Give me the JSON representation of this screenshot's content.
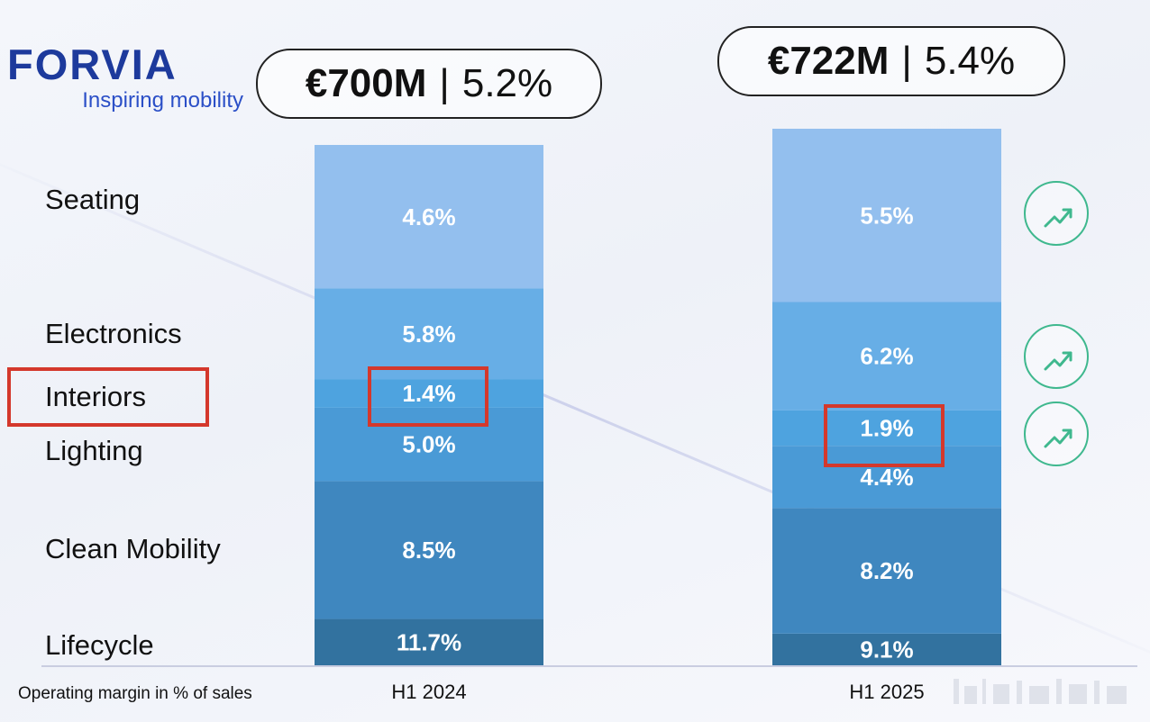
{
  "logo": {
    "name": "FORVIA",
    "tagline": "Inspiring mobility"
  },
  "totals": [
    {
      "period": "H1 2024",
      "amount": "€700M",
      "separator": "|",
      "margin": "5.2%"
    },
    {
      "period": "H1 2025",
      "amount": "€722M",
      "separator": "|",
      "margin": "5.4%"
    }
  ],
  "segment_labels": [
    "Seating",
    "Electronics",
    "Interiors",
    "Lighting",
    "Clean Mobility",
    "Lifecycle"
  ],
  "highlighted_segment": "Interiors",
  "footnote": "Operating margin in % of sales",
  "trend_icons": [
    {
      "segment": "Seating",
      "icon": "trend-up-icon"
    },
    {
      "segment": "Electronics",
      "icon": "trend-up-icon"
    },
    {
      "segment": "Interiors",
      "icon": "trend-up-icon"
    }
  ],
  "colors": {
    "seating": "#93bfee",
    "electronics": "#67aee6",
    "interiors": "#4ea3df",
    "lighting": "#4a9ad6",
    "clean_mobility": "#3f87bf",
    "lifecycle": "#32729f",
    "highlight": "#d4382c",
    "trend": "#3fb88e",
    "logo": "#1d3a9c"
  },
  "chart_data": {
    "type": "bar",
    "stacked": true,
    "title": "",
    "xlabel": "",
    "ylabel": "Operating margin in % of sales",
    "categories": [
      "H1 2024",
      "H1 2025"
    ],
    "series": [
      {
        "name": "Lifecycle",
        "values": [
          11.7,
          9.1
        ],
        "labels": [
          "11.7%",
          "9.1%"
        ]
      },
      {
        "name": "Clean Mobility",
        "values": [
          8.5,
          8.2
        ],
        "labels": [
          "8.5%",
          "8.2%"
        ]
      },
      {
        "name": "Lighting",
        "values": [
          5.0,
          4.4
        ],
        "labels": [
          "5.0%",
          "4.4%"
        ]
      },
      {
        "name": "Interiors",
        "values": [
          1.4,
          1.9
        ],
        "labels": [
          "1.4%",
          "1.9%"
        ]
      },
      {
        "name": "Electronics",
        "values": [
          5.8,
          6.2
        ],
        "labels": [
          "5.8%",
          "6.2%"
        ]
      },
      {
        "name": "Seating",
        "values": [
          4.6,
          5.5
        ],
        "labels": [
          "4.6%",
          "5.5%"
        ]
      }
    ],
    "segment_shares": {
      "H1 2024": [
        0.089,
        0.265,
        0.141,
        0.055,
        0.174,
        0.276
      ],
      "H1 2025": [
        0.059,
        0.234,
        0.116,
        0.066,
        0.202,
        0.323
      ]
    }
  }
}
